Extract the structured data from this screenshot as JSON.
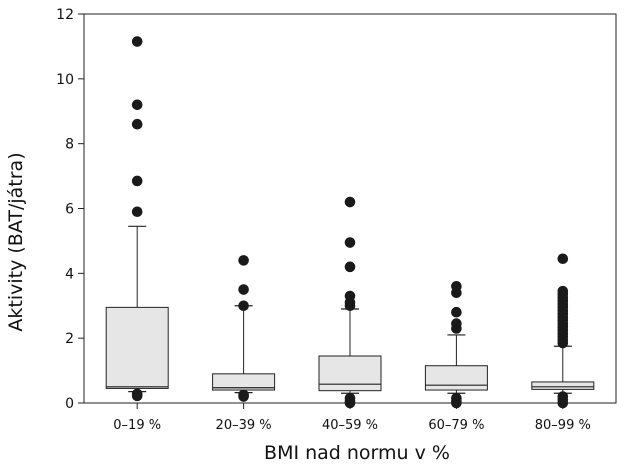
{
  "chart_data": {
    "type": "box",
    "xlabel": "BMI nad normu v %",
    "ylabel": "Aktivity (BAT/játra)",
    "ylim": [
      0,
      12
    ],
    "yticks": [
      0,
      2,
      4,
      6,
      8,
      10,
      12
    ],
    "grid": false,
    "categories": [
      "0–19 %",
      "20–39 %",
      "40–59 %",
      "60–79 %",
      "80–99 %"
    ],
    "boxes": [
      {
        "whisker_low": 0.35,
        "q1": 0.45,
        "median": 0.5,
        "q3": 2.95,
        "whisker_high": 5.45,
        "outliers": [
          5.9,
          6.85,
          8.6,
          9.2,
          11.15,
          0.28,
          0.22
        ]
      },
      {
        "whisker_low": 0.32,
        "q1": 0.4,
        "median": 0.47,
        "q3": 0.9,
        "whisker_high": 3.0,
        "outliers": [
          3.0,
          3.5,
          4.4,
          0.25,
          0.2
        ]
      },
      {
        "whisker_low": 0.3,
        "q1": 0.38,
        "median": 0.58,
        "q3": 1.45,
        "whisker_high": 2.9,
        "outliers": [
          3.0,
          3.1,
          3.3,
          4.2,
          4.95,
          6.2,
          0.15,
          0.05,
          0.0
        ]
      },
      {
        "whisker_low": 0.3,
        "q1": 0.4,
        "median": 0.55,
        "q3": 1.15,
        "whisker_high": 2.1,
        "outliers": [
          2.3,
          2.45,
          2.8,
          3.4,
          3.6,
          0.15,
          0.05,
          0.0
        ]
      },
      {
        "whisker_low": 0.3,
        "q1": 0.42,
        "median": 0.5,
        "q3": 0.65,
        "whisker_high": 1.75,
        "outliers": [
          1.85,
          1.95,
          2.05,
          2.15,
          2.25,
          2.35,
          2.45,
          2.55,
          2.65,
          2.75,
          2.85,
          2.95,
          3.05,
          3.15,
          3.25,
          3.35,
          3.45,
          4.45,
          0.2,
          0.1,
          0.0
        ]
      }
    ]
  }
}
